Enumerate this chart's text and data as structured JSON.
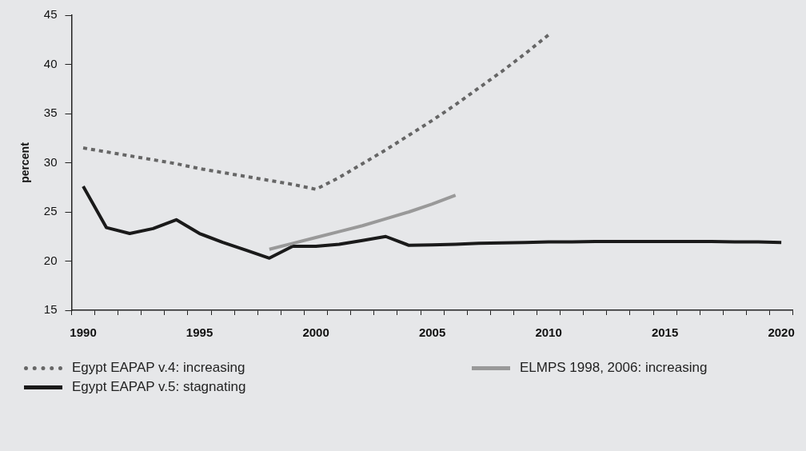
{
  "chart_data": {
    "type": "line",
    "ylabel": "percent",
    "categories": [
      "1990",
      null,
      null,
      null,
      null,
      "1995",
      null,
      null,
      null,
      null,
      "2000",
      null,
      null,
      null,
      null,
      "2005",
      null,
      null,
      null,
      null,
      "2010",
      null,
      null,
      null,
      null,
      "2015",
      null,
      null,
      null,
      null,
      "2020"
    ],
    "ylim": [
      15,
      45
    ],
    "yticks": [
      15,
      20,
      25,
      30,
      35,
      40,
      45
    ],
    "grid": false,
    "legend": "bottom",
    "marker": "none",
    "series": [
      {
        "name": "Egypt EAPAP v.4: increasing",
        "color": "#666666",
        "line_style": "dotted",
        "values": [
          31.5,
          31.1,
          30.7,
          30.3,
          29.9,
          29.4,
          29.0,
          28.6,
          28.2,
          27.8,
          27.3,
          28.5,
          29.9,
          31.3,
          32.8,
          34.3,
          35.9,
          37.6,
          39.3,
          41.1,
          43.0,
          null,
          null,
          null,
          null,
          null,
          null,
          null,
          null,
          null,
          null
        ]
      },
      {
        "name": "ELMPS 1998, 2006: increasing",
        "color": "#999999",
        "line_style": "solid",
        "values": [
          null,
          null,
          null,
          null,
          null,
          null,
          null,
          null,
          21.2,
          21.8,
          22.4,
          23.0,
          23.6,
          24.3,
          25.0,
          25.8,
          26.7,
          null,
          null,
          null,
          null,
          null,
          null,
          null,
          null,
          null,
          null,
          null,
          null,
          null,
          null
        ]
      },
      {
        "name": "Egypt EAPAP v.5: stagnating",
        "color": "#1a1a1a",
        "line_style": "solid",
        "values": [
          27.6,
          23.4,
          22.8,
          23.3,
          24.2,
          22.8,
          21.9,
          21.1,
          20.3,
          21.5,
          21.5,
          21.7,
          22.1,
          22.5,
          21.6,
          21.65,
          21.7,
          21.8,
          21.85,
          21.9,
          21.95,
          21.95,
          22.0,
          22.0,
          22.0,
          22.0,
          22.0,
          22.0,
          21.95,
          21.95,
          21.9
        ]
      }
    ]
  }
}
